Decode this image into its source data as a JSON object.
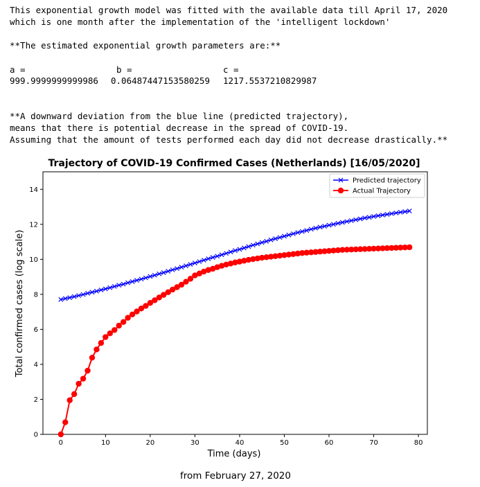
{
  "notebook": {
    "intro_line1": "This exponential growth model was fitted with the available data till April 17, 2020",
    "intro_line2": "which is one month after the implementation of the 'intelligent lockdown'",
    "params_heading": "**The estimated exponential growth parameters are:**",
    "param_a_label": "a =",
    "param_b_label": "b =",
    "param_c_label": "c =",
    "param_a_value": "999.9999999999986",
    "param_b_value": "0.06487447153580259",
    "param_c_value": "1217.5537210829987",
    "note_line1": "**A downward deviation from the blue line (predicted trajectory),",
    "note_line2": "means that there is potential decrease in the spread of COVID-19.",
    "note_line3": "Assuming that the amount of tests performed each day did not decrease drastically.**"
  },
  "chart_data": {
    "type": "line",
    "title": "Trajectory of COVID-19 Confirmed Cases (Netherlands) [16/05/2020]",
    "xlabel": "Time (days)",
    "ylabel": "Total confirmed cases (log scale)",
    "caption": "from February 27, 2020",
    "xlim": [
      -4,
      82
    ],
    "ylim": [
      0,
      15
    ],
    "xticks": [
      0,
      10,
      20,
      30,
      40,
      50,
      60,
      70,
      80
    ],
    "yticks": [
      0,
      2,
      4,
      6,
      8,
      10,
      12,
      14
    ],
    "grid": false,
    "legend_position": "top-right",
    "series": [
      {
        "name": "Predicted trajectory",
        "color": "#0000ff",
        "marker": "x",
        "x": [
          0,
          1,
          2,
          3,
          4,
          5,
          6,
          7,
          8,
          9,
          10,
          11,
          12,
          13,
          14,
          15,
          16,
          17,
          18,
          19,
          20,
          21,
          22,
          23,
          24,
          25,
          26,
          27,
          28,
          29,
          30,
          31,
          32,
          33,
          34,
          35,
          36,
          37,
          38,
          39,
          40,
          41,
          42,
          43,
          44,
          45,
          46,
          47,
          48,
          49,
          50,
          51,
          52,
          53,
          54,
          55,
          56,
          57,
          58,
          59,
          60,
          61,
          62,
          63,
          64,
          65,
          66,
          67,
          68,
          69,
          70,
          71,
          72,
          73,
          74,
          75,
          76,
          77,
          78
        ],
        "y": [
          7.7,
          7.76,
          7.81,
          7.87,
          7.93,
          7.99,
          8.06,
          8.12,
          8.18,
          8.25,
          8.31,
          8.38,
          8.45,
          8.52,
          8.58,
          8.66,
          8.73,
          8.8,
          8.87,
          8.94,
          9.02,
          9.09,
          9.17,
          9.24,
          9.32,
          9.4,
          9.47,
          9.55,
          9.63,
          9.71,
          9.79,
          9.87,
          9.95,
          10.03,
          10.11,
          10.18,
          10.26,
          10.34,
          10.42,
          10.5,
          10.57,
          10.65,
          10.73,
          10.81,
          10.88,
          10.96,
          11.03,
          11.11,
          11.18,
          11.25,
          11.32,
          11.39,
          11.46,
          11.53,
          11.59,
          11.65,
          11.72,
          11.78,
          11.84,
          11.89,
          11.95,
          12.0,
          12.06,
          12.11,
          12.16,
          12.21,
          12.26,
          12.31,
          12.36,
          12.4,
          12.45,
          12.49,
          12.53,
          12.57,
          12.61,
          12.65,
          12.69,
          12.72,
          12.76
        ]
      },
      {
        "name": "Actual Trajectory",
        "color": "#ff0000",
        "marker": "o",
        "x": [
          0,
          1,
          2,
          3,
          4,
          5,
          6,
          7,
          8,
          9,
          10,
          11,
          12,
          13,
          14,
          15,
          16,
          17,
          18,
          19,
          20,
          21,
          22,
          23,
          24,
          25,
          26,
          27,
          28,
          29,
          30,
          31,
          32,
          33,
          34,
          35,
          36,
          37,
          38,
          39,
          40,
          41,
          42,
          43,
          44,
          45,
          46,
          47,
          48,
          49,
          50,
          51,
          52,
          53,
          54,
          55,
          56,
          57,
          58,
          59,
          60,
          61,
          62,
          63,
          64,
          65,
          66,
          67,
          68,
          69,
          70,
          71,
          72,
          73,
          74,
          75,
          76,
          77,
          78
        ],
        "y": [
          0,
          0.69,
          1.95,
          2.3,
          2.89,
          3.18,
          3.64,
          4.38,
          4.85,
          5.22,
          5.56,
          5.77,
          5.96,
          6.21,
          6.42,
          6.66,
          6.85,
          7.02,
          7.19,
          7.34,
          7.51,
          7.66,
          7.82,
          7.97,
          8.12,
          8.27,
          8.41,
          8.55,
          8.72,
          8.89,
          9.08,
          9.19,
          9.3,
          9.39,
          9.46,
          9.55,
          9.63,
          9.7,
          9.76,
          9.82,
          9.87,
          9.92,
          9.97,
          10.01,
          10.05,
          10.09,
          10.12,
          10.15,
          10.18,
          10.21,
          10.24,
          10.27,
          10.3,
          10.33,
          10.36,
          10.38,
          10.4,
          10.42,
          10.44,
          10.46,
          10.48,
          10.5,
          10.52,
          10.54,
          10.55,
          10.56,
          10.57,
          10.58,
          10.59,
          10.6,
          10.61,
          10.62,
          10.63,
          10.64,
          10.65,
          10.66,
          10.67,
          10.68,
          10.69
        ]
      }
    ]
  }
}
